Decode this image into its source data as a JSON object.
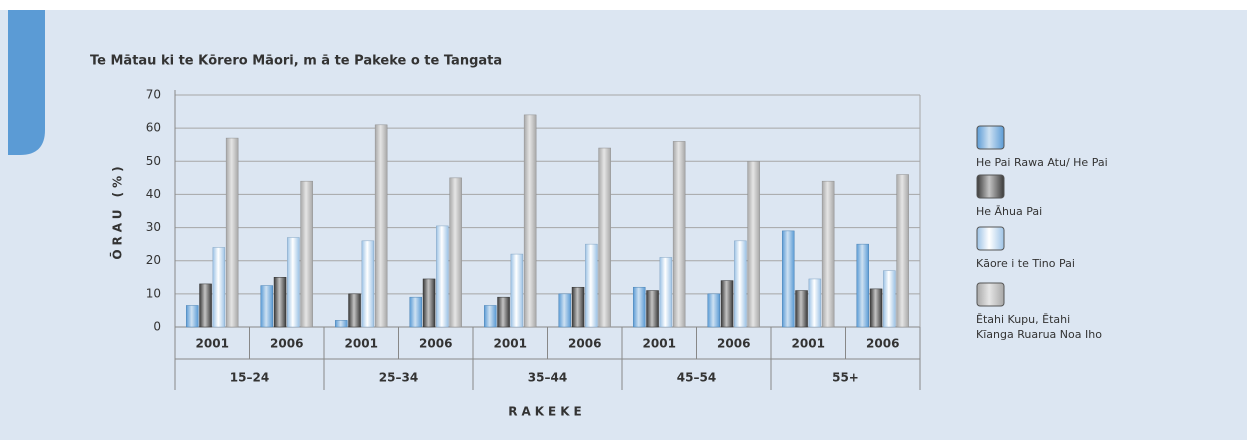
{
  "chart_data": {
    "type": "grouped-bar",
    "title": "Te Mātau ki te Kōrero Māori, m ā te Pakeke o te Tangata",
    "y_axis_label": "ŌRAU (%)",
    "x_axis_label": "RAKEKE",
    "categories": [
      "2001",
      "2006",
      "2001",
      "2006",
      "2001",
      "2006",
      "2001",
      "2006",
      "2001",
      "2006"
    ],
    "category_groups": [
      "15–24",
      "25–34",
      "35–44",
      "45–54",
      "55+"
    ],
    "series": [
      {
        "name": "He Pai Rawa Atu/ He Pai",
        "color": "#5b9bd5",
        "values": [
          6.5,
          12.5,
          2,
          9,
          6.5,
          10,
          12,
          10,
          29,
          25
        ]
      },
      {
        "name": "He Āhua Pai",
        "color": "#3a3a3a",
        "values": [
          13,
          15,
          10,
          14.5,
          9,
          12,
          11,
          14,
          11,
          11.5
        ]
      },
      {
        "name": "Kāore i te Tino Pai",
        "color": "#ffffff",
        "values": [
          24,
          27,
          26,
          30.5,
          22,
          25,
          21,
          26,
          14.5,
          17
        ]
      },
      {
        "name": "Ētahi Kupu, Ētahi Kīanga Ruarua Noa Iho",
        "color": "#a8a8a8",
        "values": [
          57,
          44,
          61,
          45,
          64,
          54,
          56,
          50,
          44,
          46
        ]
      }
    ],
    "ylim": [
      0,
      70
    ],
    "yticks": [
      0,
      10,
      20,
      30,
      40,
      50,
      60,
      70
    ],
    "grid": true
  }
}
